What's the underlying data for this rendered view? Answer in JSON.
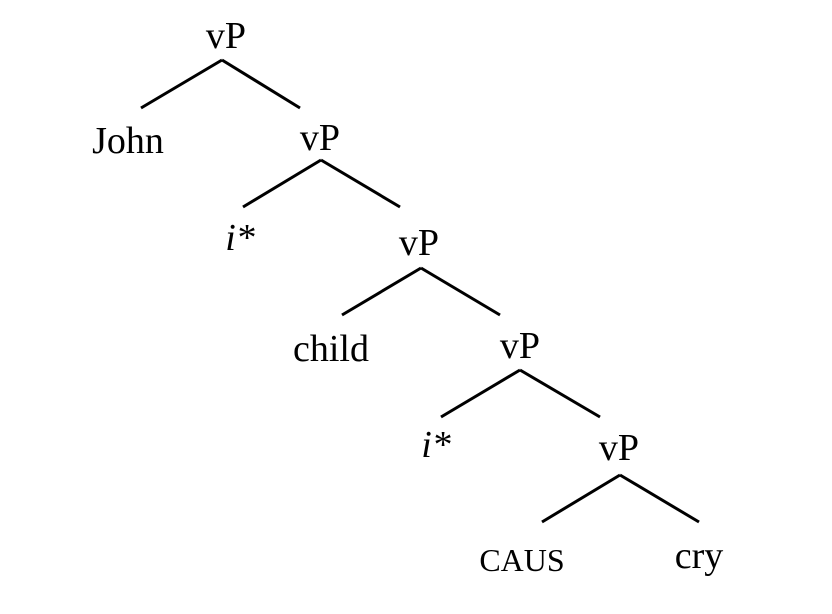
{
  "tree": {
    "nodes": [
      {
        "id": "n1",
        "label": "vP"
      },
      {
        "id": "n2",
        "label": "John"
      },
      {
        "id": "n3",
        "label": "vP"
      },
      {
        "id": "n4",
        "label": "i*"
      },
      {
        "id": "n5",
        "label": "vP"
      },
      {
        "id": "n6",
        "label": "child"
      },
      {
        "id": "n7",
        "label": "vP"
      },
      {
        "id": "n8",
        "label": "i*"
      },
      {
        "id": "n9",
        "label": "vP"
      },
      {
        "id": "n10",
        "label": "CAUS"
      },
      {
        "id": "n11",
        "label": "cry"
      }
    ],
    "edges": [
      [
        "n1",
        "n2"
      ],
      [
        "n1",
        "n3"
      ],
      [
        "n3",
        "n4"
      ],
      [
        "n3",
        "n5"
      ],
      [
        "n5",
        "n6"
      ],
      [
        "n5",
        "n7"
      ],
      [
        "n7",
        "n8"
      ],
      [
        "n7",
        "n9"
      ],
      [
        "n9",
        "n10"
      ],
      [
        "n9",
        "n11"
      ]
    ]
  }
}
